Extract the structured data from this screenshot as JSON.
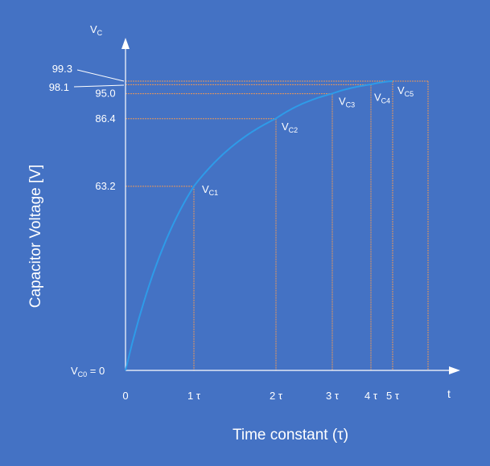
{
  "chart_data": {
    "type": "line",
    "title": "",
    "xlabel": "Time constant (τ)",
    "ylabel": "Capacitor Voltage [V]",
    "x_axis_letter": "t",
    "y_axis_letter": {
      "main": "V",
      "sub": "C"
    },
    "xlim": [
      0,
      6
    ],
    "ylim": [
      0,
      100
    ],
    "x_ticks": [
      {
        "value": 0,
        "label": "0"
      },
      {
        "value": 1,
        "label": "1 τ"
      },
      {
        "value": 2,
        "label": "2 τ"
      },
      {
        "value": 3,
        "label": "3 τ"
      },
      {
        "value": 4,
        "label": "4 τ"
      },
      {
        "value": 5,
        "label": "5 τ"
      }
    ],
    "y_tick_labels": [
      {
        "value": 63.2,
        "label": "63.2"
      },
      {
        "value": 86.4,
        "label": "86.4"
      },
      {
        "value": 95.0,
        "label": "95.0"
      },
      {
        "value": 98.1,
        "label": "98.1"
      },
      {
        "value": 99.3,
        "label": "99.3"
      }
    ],
    "origin_label": {
      "main": "V",
      "sub": "C0",
      "suffix": " = 0"
    },
    "points": [
      {
        "x": 1,
        "y": 63.2,
        "label_main": "V",
        "label_sub": "C1"
      },
      {
        "x": 2,
        "y": 86.4,
        "label_main": "V",
        "label_sub": "C2"
      },
      {
        "x": 3,
        "y": 95.0,
        "label_main": "V",
        "label_sub": "C3"
      },
      {
        "x": 4,
        "y": 98.1,
        "label_main": "V",
        "label_sub": "C4"
      },
      {
        "x": 5,
        "y": 99.3,
        "label_main": "V",
        "label_sub": "C5"
      }
    ],
    "series": [
      {
        "x": [
          0,
          1,
          2,
          3,
          4,
          5
        ],
        "y": [
          0,
          63.2,
          86.4,
          95.0,
          98.1,
          99.3
        ]
      }
    ],
    "colors": {
      "background": "#4472C4",
      "curve": "#2E9BE8",
      "guides": "#E8975A",
      "axes": "#FFFFFF",
      "text": "#FFFFFF"
    }
  }
}
